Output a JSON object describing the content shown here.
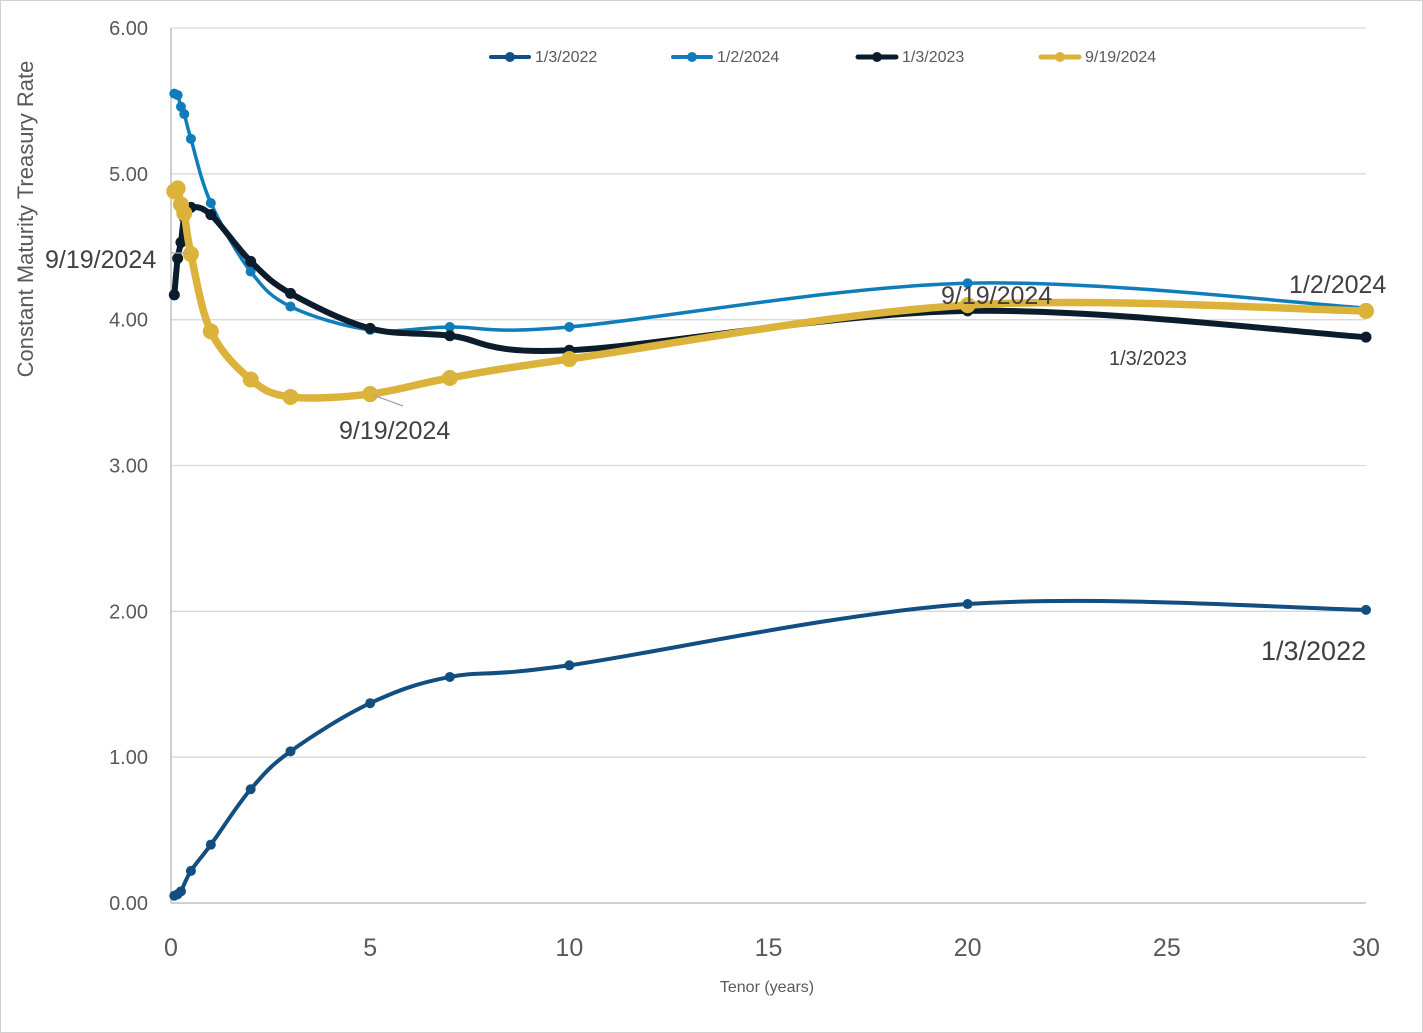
{
  "chart_data": {
    "type": "line",
    "title": "",
    "xlabel": "Tenor (years)",
    "ylabel": "Constant Maturity Treasury Rate",
    "xlim": [
      0,
      30
    ],
    "ylim": [
      0,
      6
    ],
    "x_ticks": [
      "0",
      "5",
      "10",
      "15",
      "20",
      "25",
      "30"
    ],
    "y_ticks": [
      "0.00",
      "1.00",
      "2.00",
      "3.00",
      "4.00",
      "5.00",
      "6.00"
    ],
    "grid": "horizontal",
    "legend_position": "top",
    "smoothed": true,
    "series": [
      {
        "name": "1/3/2022",
        "color": "#124e80",
        "x": [
          0.083,
          0.167,
          0.25,
          0.5,
          1,
          2,
          3,
          5,
          7,
          10,
          20,
          30
        ],
        "y": [
          0.05,
          0.06,
          0.08,
          0.22,
          0.4,
          0.78,
          1.04,
          1.37,
          1.55,
          1.63,
          2.05,
          2.01
        ]
      },
      {
        "name": "1/2/2024",
        "color": "#0f7db9",
        "x": [
          0.083,
          0.167,
          0.25,
          0.333,
          0.5,
          1,
          2,
          3,
          5,
          7,
          10,
          20,
          30
        ],
        "y": [
          5.55,
          5.54,
          5.46,
          5.41,
          5.24,
          4.8,
          4.33,
          4.09,
          3.93,
          3.95,
          3.95,
          4.25,
          4.08
        ]
      },
      {
        "name": "1/3/2023",
        "color": "#0b1d2c",
        "x": [
          0.083,
          0.167,
          0.25,
          0.333,
          0.5,
          1,
          2,
          3,
          5,
          7,
          10,
          20,
          30
        ],
        "y": [
          4.17,
          4.42,
          4.53,
          4.7,
          4.77,
          4.72,
          4.4,
          4.18,
          3.94,
          3.89,
          3.79,
          4.06,
          3.88
        ]
      },
      {
        "name": "9/19/2024",
        "color": "#dbb23a",
        "x": [
          0.083,
          0.167,
          0.25,
          0.333,
          0.5,
          1,
          2,
          3,
          5,
          7,
          10,
          20,
          30
        ],
        "y": [
          4.88,
          4.9,
          4.79,
          4.73,
          4.45,
          3.92,
          3.59,
          3.47,
          3.49,
          3.6,
          3.73,
          4.1,
          4.06
        ]
      }
    ],
    "annotations": [
      {
        "text": "9/19/2024",
        "series": "9/19/2024",
        "at_x": 0.5
      },
      {
        "text": "9/19/2024",
        "series": "9/19/2024",
        "at_x": 5
      },
      {
        "text": "9/19/2024",
        "series": "9/19/2024",
        "at_x": 20
      },
      {
        "text": "1/2/2024",
        "series": "1/2/2024",
        "at_x": 30
      },
      {
        "text": "1/3/2023",
        "series": "1/3/2023",
        "at_x": 30
      },
      {
        "text": "1/3/2022",
        "series": "1/3/2022",
        "at_x": 30
      }
    ]
  }
}
